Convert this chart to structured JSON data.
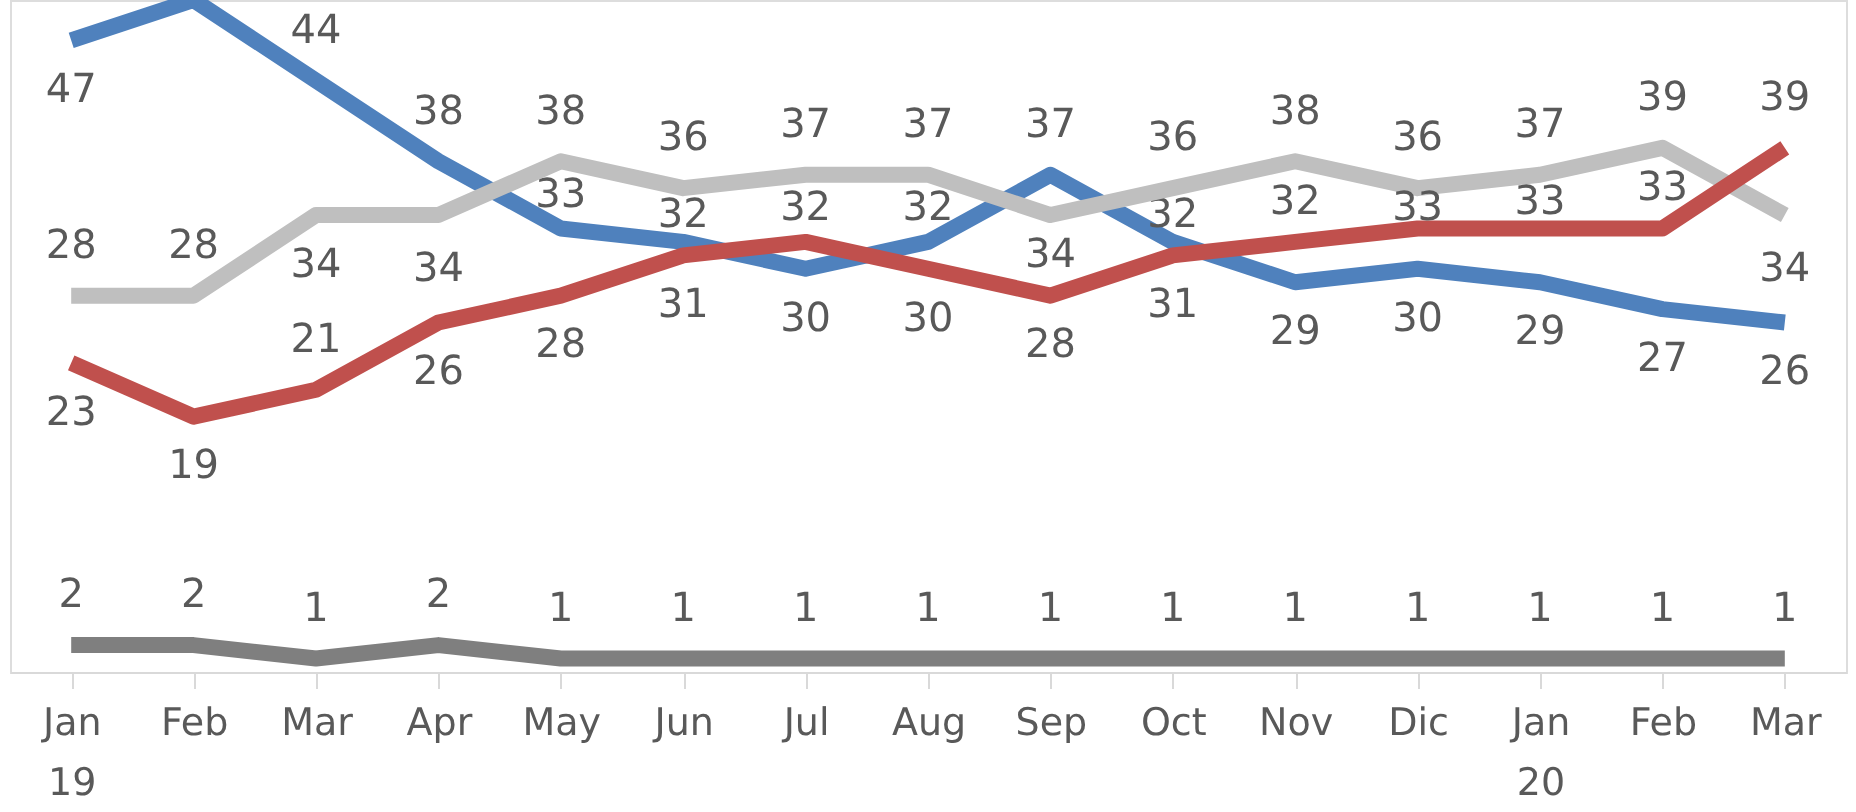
{
  "chart_data": {
    "type": "line",
    "categories": [
      "Jan 19",
      "Feb",
      "Mar",
      "Apr",
      "May",
      "Jun",
      "Jul",
      "Aug",
      "Sep",
      "Oct",
      "Nov",
      "Dic",
      "Jan 20",
      "Feb",
      "Mar"
    ],
    "ylim": [
      0,
      50
    ],
    "tick_labels": "x",
    "grid": false,
    "legend": false,
    "marker": "none",
    "series": [
      {
        "color": "#4f81bd",
        "values": [
          47,
          50,
          44,
          38,
          33,
          32,
          30,
          32,
          37,
          32,
          29,
          30,
          29,
          27,
          26
        ],
        "value_labels": [
          "47",
          null,
          "44",
          "38",
          "33",
          "32",
          "30",
          "32",
          "37",
          "32",
          "29",
          "30",
          "29",
          "27",
          "26"
        ]
      },
      {
        "color": "#bfbfbf",
        "values": [
          28,
          28,
          34,
          34,
          38,
          36,
          37,
          37,
          34,
          36,
          38,
          36,
          37,
          39,
          34
        ],
        "value_labels": [
          "28",
          "28",
          "34",
          "34",
          "38",
          "36",
          "37",
          "37",
          "34",
          "36",
          "38",
          "36",
          "37",
          "39",
          "34"
        ]
      },
      {
        "color": "#c0504d",
        "values": [
          23,
          19,
          21,
          26,
          28,
          31,
          32,
          30,
          28,
          31,
          32,
          33,
          33,
          33,
          39
        ],
        "value_labels": [
          "23",
          "19",
          "21",
          "26",
          "28",
          "31",
          "32",
          "30",
          "28",
          "31",
          "32",
          "33",
          "33",
          "33",
          "39"
        ]
      },
      {
        "color": "#7f7f7f",
        "values": [
          2,
          2,
          1,
          2,
          1,
          1,
          1,
          1,
          1,
          1,
          1,
          1,
          1,
          1,
          1
        ],
        "value_labels": [
          "2",
          "2",
          "1",
          "2",
          "1",
          "1",
          "1",
          "1",
          "1",
          "1",
          "1",
          "1",
          "1",
          "1",
          "1"
        ]
      }
    ]
  }
}
